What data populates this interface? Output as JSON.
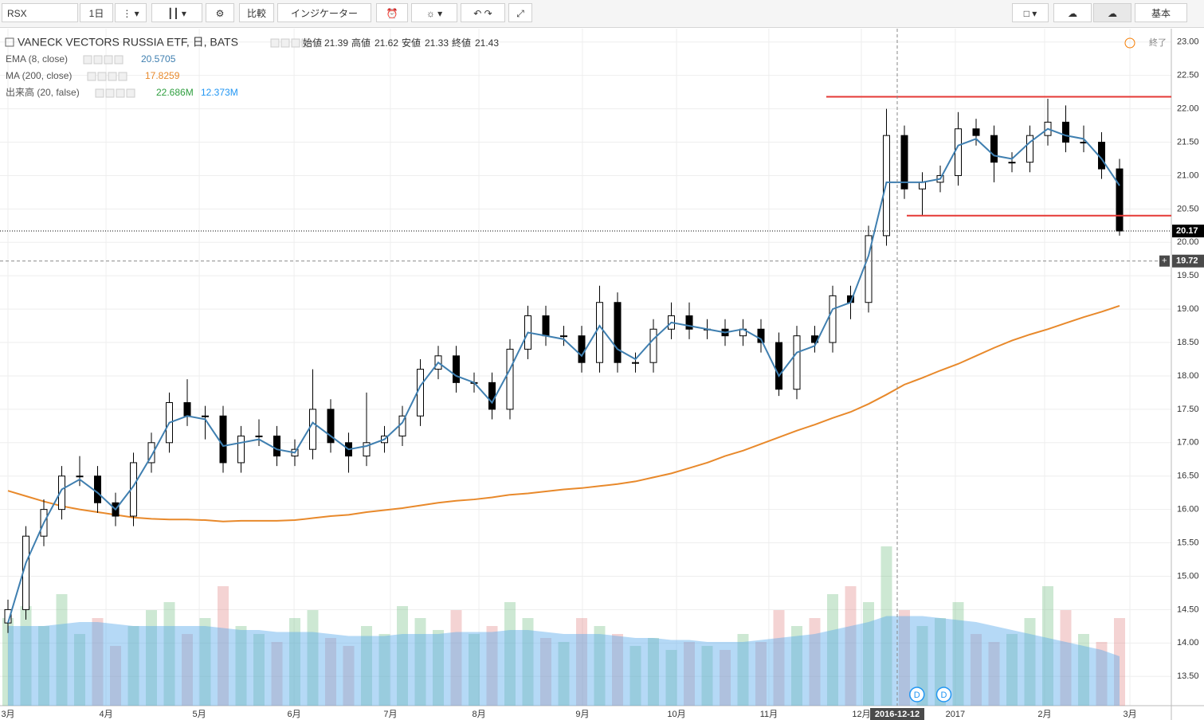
{
  "toolbar": {
    "symbol": "RSX",
    "interval": "1日",
    "compare": "比較",
    "indicators": "インジケーター",
    "layout": "基本"
  },
  "chart_data": {
    "type": "candlestick",
    "title": "VANECK VECTORS RUSSIA ETF, 日, BATS",
    "ohlc_legend": {
      "open_label": "始値",
      "open": "21.39",
      "high_label": "高値",
      "high": "21.62",
      "low_label": "安値",
      "low": "21.33",
      "close_label": "終値",
      "close": "21.43"
    },
    "indicators": [
      {
        "name": "EMA (8, close)",
        "value": "20.5705",
        "color": "#3f7fb0"
      },
      {
        "name": "MA (200, close)",
        "value": "17.8259",
        "color": "#e8892b"
      },
      {
        "name": "出来高 (20, false)",
        "value": "22.686M",
        "value2": "12.373M",
        "color": "#2e9e3e",
        "color2": "#2196f3"
      }
    ],
    "status": "終了",
    "candles": [
      [
        14.3,
        14.65,
        14.15,
        14.5
      ],
      [
        14.5,
        15.75,
        14.35,
        15.6
      ],
      [
        15.6,
        16.15,
        15.45,
        16.0
      ],
      [
        16.0,
        16.65,
        15.85,
        16.5
      ],
      [
        16.5,
        16.8,
        16.35,
        16.5
      ],
      [
        16.5,
        16.65,
        15.95,
        16.1
      ],
      [
        16.1,
        16.25,
        15.75,
        15.9
      ],
      [
        15.9,
        16.85,
        15.75,
        16.7
      ],
      [
        16.7,
        17.15,
        16.55,
        17.0
      ],
      [
        17.0,
        17.75,
        16.85,
        17.6
      ],
      [
        17.6,
        17.95,
        17.25,
        17.4
      ],
      [
        17.4,
        17.55,
        17.05,
        17.4
      ],
      [
        17.4,
        17.55,
        16.55,
        16.7
      ],
      [
        16.7,
        17.25,
        16.55,
        17.1
      ],
      [
        17.1,
        17.35,
        16.95,
        17.1
      ],
      [
        17.1,
        17.25,
        16.65,
        16.8
      ],
      [
        16.8,
        17.05,
        16.65,
        16.9
      ],
      [
        16.9,
        18.1,
        16.75,
        17.5
      ],
      [
        17.5,
        17.65,
        16.85,
        17.0
      ],
      [
        17.0,
        17.15,
        16.55,
        16.8
      ],
      [
        16.8,
        17.75,
        16.65,
        17.0
      ],
      [
        17.0,
        17.25,
        16.85,
        17.1
      ],
      [
        17.1,
        17.55,
        16.95,
        17.4
      ],
      [
        17.4,
        18.25,
        17.25,
        18.1
      ],
      [
        18.1,
        18.45,
        17.95,
        18.3
      ],
      [
        18.3,
        18.45,
        17.75,
        17.9
      ],
      [
        17.9,
        18.05,
        17.75,
        17.9
      ],
      [
        17.9,
        18.05,
        17.35,
        17.5
      ],
      [
        17.5,
        18.55,
        17.35,
        18.4
      ],
      [
        18.4,
        19.05,
        18.25,
        18.9
      ],
      [
        18.9,
        19.05,
        18.45,
        18.6
      ],
      [
        18.6,
        18.75,
        18.45,
        18.6
      ],
      [
        18.6,
        18.75,
        18.05,
        18.2
      ],
      [
        18.2,
        19.35,
        18.05,
        19.1
      ],
      [
        19.1,
        19.25,
        18.05,
        18.2
      ],
      [
        18.2,
        18.35,
        18.05,
        18.2
      ],
      [
        18.2,
        18.85,
        18.05,
        18.7
      ],
      [
        18.7,
        19.1,
        18.55,
        18.9
      ],
      [
        18.9,
        19.1,
        18.55,
        18.7
      ],
      [
        18.7,
        18.85,
        18.55,
        18.7
      ],
      [
        18.7,
        18.85,
        18.45,
        18.6
      ],
      [
        18.6,
        18.85,
        18.45,
        18.7
      ],
      [
        18.7,
        18.85,
        18.35,
        18.5
      ],
      [
        18.5,
        18.65,
        17.7,
        17.8
      ],
      [
        17.8,
        18.75,
        17.65,
        18.6
      ],
      [
        18.6,
        18.75,
        18.35,
        18.5
      ],
      [
        18.5,
        19.35,
        18.35,
        19.2
      ],
      [
        19.2,
        19.35,
        18.85,
        19.1
      ],
      [
        19.1,
        20.25,
        18.95,
        20.1
      ],
      [
        20.1,
        22.0,
        19.95,
        21.6
      ],
      [
        21.6,
        21.75,
        20.65,
        20.8
      ],
      [
        20.8,
        21.05,
        20.4,
        20.9
      ],
      [
        20.9,
        21.15,
        20.75,
        21.0
      ],
      [
        21.0,
        21.95,
        20.85,
        21.7
      ],
      [
        21.7,
        21.85,
        21.45,
        21.6
      ],
      [
        21.6,
        21.75,
        20.9,
        21.2
      ],
      [
        21.2,
        21.35,
        21.05,
        21.2
      ],
      [
        21.2,
        21.75,
        21.05,
        21.6
      ],
      [
        21.6,
        22.15,
        21.45,
        21.8
      ],
      [
        21.8,
        22.05,
        21.35,
        21.5
      ],
      [
        21.5,
        21.75,
        21.35,
        21.5
      ],
      [
        21.5,
        21.65,
        20.95,
        21.1
      ],
      [
        21.1,
        21.25,
        20.1,
        20.17
      ]
    ],
    "ema": [
      14.3,
      15.2,
      15.8,
      16.3,
      16.45,
      16.25,
      16.0,
      16.35,
      16.8,
      17.3,
      17.4,
      17.35,
      16.95,
      17.0,
      17.05,
      16.9,
      16.85,
      17.3,
      17.1,
      16.9,
      16.95,
      17.05,
      17.3,
      17.85,
      18.2,
      18.0,
      17.9,
      17.6,
      18.1,
      18.65,
      18.6,
      18.55,
      18.3,
      18.75,
      18.4,
      18.25,
      18.55,
      18.8,
      18.75,
      18.7,
      18.65,
      18.7,
      18.55,
      18.0,
      18.35,
      18.45,
      19.0,
      19.1,
      19.8,
      20.9,
      20.9,
      20.9,
      20.95,
      21.45,
      21.55,
      21.3,
      21.25,
      21.5,
      21.7,
      21.6,
      21.55,
      21.25,
      20.85
    ],
    "ma": [
      16.28,
      16.2,
      16.12,
      16.05,
      16.0,
      15.96,
      15.92,
      15.88,
      15.86,
      15.85,
      15.85,
      15.84,
      15.82,
      15.83,
      15.83,
      15.83,
      15.84,
      15.87,
      15.9,
      15.92,
      15.96,
      15.99,
      16.02,
      16.06,
      16.1,
      16.13,
      16.15,
      16.18,
      16.22,
      16.24,
      16.27,
      16.3,
      16.32,
      16.35,
      16.38,
      16.42,
      16.48,
      16.54,
      16.62,
      16.7,
      16.8,
      16.88,
      16.98,
      17.08,
      17.18,
      17.27,
      17.37,
      17.46,
      17.58,
      17.72,
      17.87,
      17.97,
      18.08,
      18.18,
      18.3,
      18.42,
      18.53,
      18.62,
      18.7,
      18.79,
      18.88,
      18.96,
      19.05
    ],
    "volume": [
      22,
      25,
      20,
      28,
      18,
      22,
      15,
      20,
      24,
      26,
      18,
      22,
      30,
      20,
      18,
      16,
      22,
      24,
      17,
      15,
      20,
      18,
      25,
      22,
      19,
      24,
      18,
      20,
      26,
      22,
      17,
      16,
      22,
      20,
      18,
      15,
      17,
      14,
      16,
      15,
      14,
      18,
      16,
      24,
      20,
      22,
      28,
      30,
      26,
      40,
      24,
      20,
      22,
      26,
      18,
      16,
      18,
      22,
      30,
      24,
      18,
      16,
      22
    ],
    "volume_ma": [
      20,
      20,
      20,
      20.5,
      21,
      21,
      20.5,
      20,
      20,
      20,
      20,
      20,
      19.5,
      19,
      19,
      18.5,
      18.5,
      18.5,
      18,
      17.5,
      17.5,
      17.5,
      18,
      18,
      18,
      18.5,
      18.5,
      18.5,
      19,
      19,
      18.5,
      18,
      18,
      18,
      17.5,
      17,
      17,
      16.5,
      16.5,
      16,
      16,
      16,
      16.5,
      17,
      17.5,
      18,
      19,
      20,
      21,
      22.5,
      22.5,
      22.5,
      22,
      21.5,
      21,
      20,
      19,
      18,
      17,
      16,
      15,
      14,
      12.4
    ],
    "levels": [
      22.18,
      20.4
    ],
    "level_color": "#e53935",
    "last_price": 20.17,
    "crosshair_price": 19.72,
    "crosshair_x": {
      "value": 49.6,
      "label": "2016-12-12"
    },
    "dividends": [
      {
        "x": 50.7,
        "label": "D"
      },
      {
        "x": 52.2,
        "label": "D"
      }
    ],
    "up_color": "#ffffff",
    "down_color": "#000000",
    "ylim": [
      13.3,
      23.2
    ],
    "yticks": [
      {
        "value": 13.5,
        "label": "13.50"
      },
      {
        "value": 14,
        "label": "14.00"
      },
      {
        "value": 14.5,
        "label": "14.50"
      },
      {
        "value": 15,
        "label": "15.00"
      },
      {
        "value": 15.5,
        "label": "15.50"
      },
      {
        "value": 16,
        "label": "16.00"
      },
      {
        "value": 16.5,
        "label": "16.50"
      },
      {
        "value": 17,
        "label": "17.00"
      },
      {
        "value": 17.5,
        "label": "17.50"
      },
      {
        "value": 18,
        "label": "18.00"
      },
      {
        "value": 18.5,
        "label": "18.50"
      },
      {
        "value": 19,
        "label": "19.00"
      },
      {
        "value": 19.5,
        "label": "19.50"
      },
      {
        "value": 20,
        "label": "20.00"
      },
      {
        "value": 20.5,
        "label": "20.50"
      },
      {
        "value": 21,
        "label": "21.00"
      },
      {
        "value": 21.5,
        "label": "21.50"
      },
      {
        "value": 22,
        "label": "22.00"
      },
      {
        "value": 22.5,
        "label": "22.50"
      },
      {
        "value": 23,
        "label": "23.00"
      }
    ],
    "xticks": [
      {
        "value": 0,
        "label": "3月"
      },
      {
        "value": 5.47,
        "label": "4月"
      },
      {
        "value": 10.67,
        "label": "5月"
      },
      {
        "value": 15.96,
        "label": "6月"
      },
      {
        "value": 21.33,
        "label": "7月"
      },
      {
        "value": 26.27,
        "label": "8月"
      },
      {
        "value": 32.04,
        "label": "9月"
      },
      {
        "value": 37.29,
        "label": "10月"
      },
      {
        "value": 42.44,
        "label": "11月"
      },
      {
        "value": 47.6,
        "label": "12月"
      },
      {
        "value": 52.84,
        "label": "2017"
      },
      {
        "value": 57.82,
        "label": "2月"
      },
      {
        "value": 62.58,
        "label": "3月"
      }
    ],
    "grid": true
  }
}
